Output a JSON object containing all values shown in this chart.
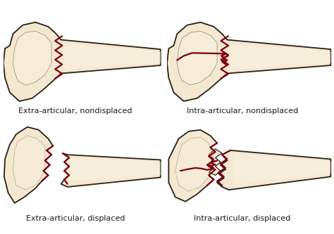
{
  "background_color": "#ffffff",
  "bone_fill": "#f5e8d0",
  "bone_fill_light": "#f8f0e0",
  "bone_edge": "#2a2015",
  "bone_inner": "#e8d5b0",
  "fracture_color": "#7a0010",
  "text_color": "#1a1a1a",
  "labels": [
    "Extra-articular, nondisplaced",
    "Intra-articular, nondisplaced",
    "Extra-articular, displaced",
    "Intra-articular, displaced"
  ],
  "label_fontsize": 8.0,
  "figsize": [
    4.74,
    3.33
  ],
  "dpi": 100
}
